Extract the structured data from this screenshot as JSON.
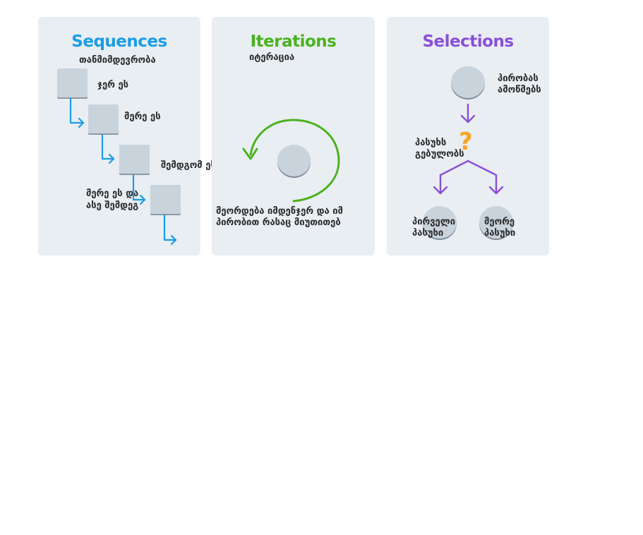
{
  "sequences": {
    "title": "Sequences",
    "subtitle": "თანმიმდევრობა",
    "step1": "ჯერ ეს",
    "step2": "მერე ეს",
    "step3": "შემდგომ ეს",
    "step4_line1": "მერე ეს და",
    "step4_line2": "ასე შემდეგ",
    "color": "#1a9de3"
  },
  "iterations": {
    "title": "Iterations",
    "subtitle": "იტერაცია",
    "caption_line1": "მეორდება იმდენჯერ და იმ",
    "caption_line2": "პირობით რასაც მიუთითებ",
    "color": "#4ab21e"
  },
  "selections": {
    "title": "Selections",
    "condition_line1": "პირობას",
    "condition_line2": "ამოწმებს",
    "question_line1": "პასუხს",
    "question_line2": "გებულობს",
    "question_mark": "?",
    "answer1_line1": "პირველი",
    "answer1_line2": "პასუხი",
    "answer2_line1": "მეორე",
    "answer2_line2": "პასუხი",
    "color": "#8a4fd6",
    "question_color": "#f5a623"
  }
}
